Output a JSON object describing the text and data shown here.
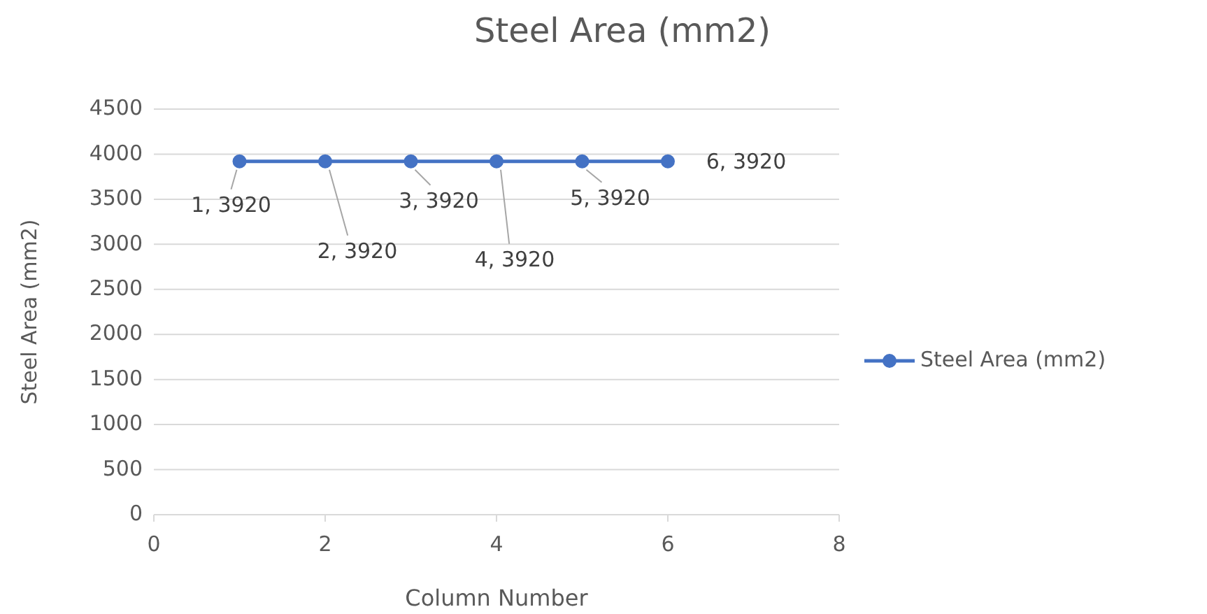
{
  "chart_data": {
    "type": "line",
    "title": "Steel Area (mm2)",
    "xlabel": "Column Number",
    "ylabel": "Steel Area (mm2)",
    "x": [
      1,
      2,
      3,
      4,
      5,
      6
    ],
    "series": [
      {
        "name": "Steel Area (mm2)",
        "color": "#4472c4",
        "values": [
          3920,
          3920,
          3920,
          3920,
          3920,
          3920
        ],
        "value_labels": [
          "1, 3920",
          "2, 3920",
          "3, 3920",
          "4, 3920",
          "5, 3920",
          "6, 3920"
        ]
      }
    ],
    "xlim": [
      0,
      8
    ],
    "xticks": [
      0,
      2,
      4,
      6,
      8
    ],
    "ylim": [
      0,
      4500
    ],
    "yticks": [
      0,
      500,
      1000,
      1500,
      2000,
      2500,
      3000,
      3500,
      4000,
      4500
    ],
    "grid": "y",
    "legend": "right",
    "marker": "circle",
    "line_style": "solid"
  }
}
